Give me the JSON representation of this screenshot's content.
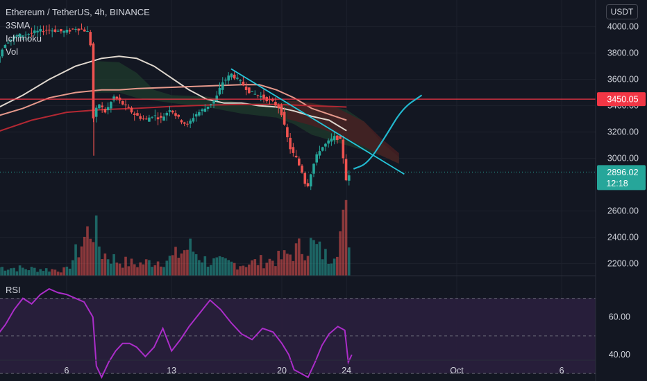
{
  "header": {
    "title": "Ethereum / TetherUS, 4h, BINANCE",
    "indicators": [
      "3SMA",
      "Ichimoku",
      "Vol"
    ],
    "currency_button": "USDT",
    "rsi_label": "RSI"
  },
  "colors": {
    "background": "#131722",
    "bull": "#26a69a",
    "bear": "#ef5350",
    "resistance": "#f23645",
    "trendline": "#26c6da",
    "projection": "#22b8cf",
    "rsi_line": "#ab2dc9",
    "rsi_band": "#2a1f3d",
    "sma_fast": "#e0d8cf",
    "sma_mid": "#e6998c",
    "sma_slow": "#b22833",
    "cloud_bull": "#1f3b2c",
    "cloud_bear": "#4a1f22"
  },
  "chart_data": [
    {
      "type": "candlestick",
      "title": "Ethereum / TetherUS, 4h, BINANCE",
      "y_tick_labels": [
        "4000.00",
        "3800.00",
        "3600.00",
        "3400.00",
        "3200.00",
        "3000.00",
        "2600.00",
        "2400.00",
        "2200.00"
      ],
      "y_ticks": [
        4000,
        3800,
        3600,
        3400,
        3200,
        3000,
        2600,
        2400,
        2200
      ],
      "ylim": [
        2000,
        4040
      ],
      "x_tick_labels": [
        "6",
        "13",
        "20",
        "24",
        "Oct",
        "6"
      ],
      "x_ticks": [
        0.0,
        6.0,
        12.3,
        16.0,
        22.3,
        28.3
      ],
      "x_unit": "days from Sep 6",
      "resistance_label": "3450.05",
      "resistance_value": 3450.05,
      "last_price_label": "2896.02",
      "last_price_value": 2896.02,
      "countdown_label": "12:18",
      "price_path": [
        [
          -4.0,
          3700
        ],
        [
          -3.8,
          3780
        ],
        [
          -3.4,
          3880
        ],
        [
          -2.8,
          3930
        ],
        [
          -2.0,
          3950
        ],
        [
          -1.0,
          3980
        ],
        [
          0.0,
          3960
        ],
        [
          0.6,
          3990
        ],
        [
          1.0,
          3980
        ],
        [
          1.4,
          3950
        ],
        [
          1.5,
          3750
        ],
        [
          1.6,
          3300
        ],
        [
          1.9,
          3420
        ],
        [
          2.3,
          3350
        ],
        [
          2.8,
          3470
        ],
        [
          3.4,
          3400
        ],
        [
          4.0,
          3330
        ],
        [
          4.6,
          3290
        ],
        [
          5.0,
          3330
        ],
        [
          5.5,
          3300
        ],
        [
          6.0,
          3380
        ],
        [
          6.5,
          3300
        ],
        [
          7.0,
          3250
        ],
        [
          7.4,
          3330
        ],
        [
          8.0,
          3380
        ],
        [
          8.6,
          3450
        ],
        [
          9.0,
          3580
        ],
        [
          9.5,
          3640
        ],
        [
          10.0,
          3580
        ],
        [
          10.6,
          3500
        ],
        [
          11.2,
          3470
        ],
        [
          11.8,
          3430
        ],
        [
          12.3,
          3380
        ],
        [
          12.6,
          3200
        ],
        [
          12.9,
          3060
        ],
        [
          13.2,
          3000
        ],
        [
          13.6,
          2880
        ],
        [
          13.8,
          2760
        ],
        [
          14.1,
          2920
        ],
        [
          14.5,
          3060
        ],
        [
          15.0,
          3120
        ],
        [
          15.4,
          3160
        ],
        [
          15.7,
          3150
        ],
        [
          15.9,
          3000
        ],
        [
          16.1,
          2800
        ],
        [
          16.3,
          2896
        ]
      ],
      "volume_path": [
        [
          -4.0,
          0.15
        ],
        [
          -2.0,
          0.12
        ],
        [
          0.0,
          0.1
        ],
        [
          1.5,
          0.9
        ],
        [
          2.0,
          0.4
        ],
        [
          3.0,
          0.25
        ],
        [
          4.0,
          0.2
        ],
        [
          6.0,
          0.3
        ],
        [
          7.0,
          0.5
        ],
        [
          8.0,
          0.25
        ],
        [
          10.0,
          0.2
        ],
        [
          12.3,
          0.3
        ],
        [
          13.5,
          0.5
        ],
        [
          14.0,
          0.55
        ],
        [
          15.0,
          0.3
        ],
        [
          16.0,
          1.0
        ],
        [
          16.3,
          0.5
        ]
      ],
      "series": [
        {
          "name": "3SMA fast",
          "values": [
            [
              -4.0,
              3380
            ],
            [
              -2.5,
              3480
            ],
            [
              -1.0,
              3600
            ],
            [
              0.5,
              3700
            ],
            [
              2.0,
              3760
            ],
            [
              3.0,
              3775
            ],
            [
              4.0,
              3760
            ],
            [
              5.0,
              3700
            ],
            [
              6.0,
              3610
            ],
            [
              7.0,
              3520
            ],
            [
              8.0,
              3450
            ],
            [
              9.0,
              3420
            ],
            [
              10.0,
              3420
            ],
            [
              11.0,
              3400
            ],
            [
              12.0,
              3390
            ],
            [
              13.0,
              3360
            ],
            [
              14.0,
              3320
            ],
            [
              15.0,
              3290
            ],
            [
              16.0,
              3210
            ]
          ]
        },
        {
          "name": "3SMA mid",
          "values": [
            [
              -4.0,
              3320
            ],
            [
              -2.5,
              3380
            ],
            [
              -1.0,
              3460
            ],
            [
              0.5,
              3500
            ],
            [
              2.0,
              3520
            ],
            [
              3.0,
              3520
            ],
            [
              4.0,
              3530
            ],
            [
              6.0,
              3540
            ],
            [
              8.0,
              3550
            ],
            [
              10.0,
              3560
            ],
            [
              11.0,
              3560
            ],
            [
              12.0,
              3520
            ],
            [
              13.0,
              3460
            ],
            [
              14.0,
              3380
            ],
            [
              16.0,
              3290
            ]
          ]
        },
        {
          "name": "3SMA slow",
          "values": [
            [
              -4.0,
              3200
            ],
            [
              -2.0,
              3290
            ],
            [
              0.0,
              3350
            ],
            [
              2.0,
              3370
            ],
            [
              4.0,
              3380
            ],
            [
              6.0,
              3395
            ],
            [
              8.0,
              3405
            ],
            [
              10.0,
              3410
            ],
            [
              12.0,
              3410
            ],
            [
              14.0,
              3400
            ],
            [
              16.0,
              3390
            ]
          ]
        },
        {
          "name": "RSI",
          "values": [
            [
              -4.0,
              50
            ],
            [
              -3.5,
              56
            ],
            [
              -3.0,
              64
            ],
            [
              -2.5,
              70
            ],
            [
              -2.0,
              67
            ],
            [
              -1.5,
              72
            ],
            [
              -1.0,
              75
            ],
            [
              -0.5,
              73
            ],
            [
              0.0,
              72
            ],
            [
              0.5,
              70
            ],
            [
              1.0,
              68
            ],
            [
              1.5,
              60
            ],
            [
              1.7,
              34
            ],
            [
              2.0,
              28
            ],
            [
              2.4,
              36
            ],
            [
              2.8,
              42
            ],
            [
              3.2,
              46
            ],
            [
              3.6,
              46
            ],
            [
              4.0,
              44
            ],
            [
              4.5,
              39
            ],
            [
              5.0,
              44
            ],
            [
              5.5,
              54
            ],
            [
              6.0,
              42
            ],
            [
              6.5,
              48
            ],
            [
              7.0,
              55
            ],
            [
              7.6,
              62
            ],
            [
              8.2,
              69
            ],
            [
              8.8,
              64
            ],
            [
              9.4,
              57
            ],
            [
              10.0,
              51
            ],
            [
              10.6,
              48
            ],
            [
              11.2,
              54
            ],
            [
              11.8,
              52
            ],
            [
              12.3,
              46
            ],
            [
              12.7,
              40
            ],
            [
              13.0,
              32
            ],
            [
              13.4,
              30
            ],
            [
              13.8,
              28
            ],
            [
              14.2,
              36
            ],
            [
              14.6,
              45
            ],
            [
              15.0,
              51
            ],
            [
              15.5,
              55
            ],
            [
              15.9,
              53
            ],
            [
              16.1,
              36
            ],
            [
              16.3,
              40
            ]
          ]
        }
      ],
      "rsi_tick_labels": [
        "60.00",
        "40.00"
      ],
      "rsi_ticks": [
        60,
        40
      ],
      "rsi_band": [
        30,
        70
      ],
      "rsi_lim": [
        26,
        82
      ],
      "trendline": [
        [
          9.4,
          3680
        ],
        [
          19.3,
          2880
        ]
      ],
      "projection_path": [
        [
          16.4,
          2920
        ],
        [
          17.2,
          2960
        ],
        [
          18.2,
          3160
        ],
        [
          19.2,
          3380
        ],
        [
          20.3,
          3480
        ]
      ]
    }
  ]
}
